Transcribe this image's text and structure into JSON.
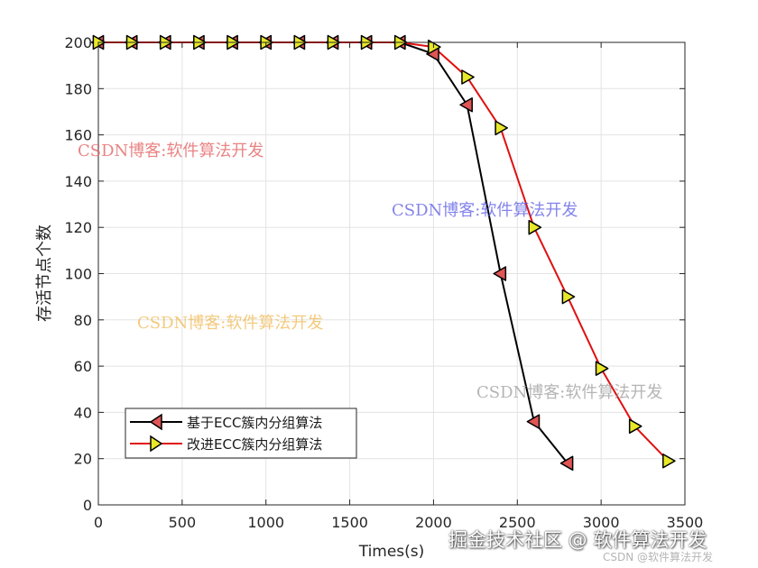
{
  "chart_data": {
    "type": "line",
    "xlabel": "Times(s)",
    "ylabel": "存活节点个数",
    "xlim": [
      0,
      3500
    ],
    "ylim": [
      0,
      200
    ],
    "xticks": [
      "0",
      "500",
      "1000",
      "1500",
      "2000",
      "2500",
      "3000",
      "3500"
    ],
    "yticks": [
      "0",
      "20",
      "40",
      "60",
      "80",
      "100",
      "120",
      "140",
      "160",
      "180",
      "200"
    ],
    "grid": true,
    "legend_position": "bottom-left",
    "series": [
      {
        "name": "基于ECC簇内分组算法",
        "line_color": "#000000",
        "marker": "left-triangle",
        "marker_fill": "#e05555",
        "x": [
          0,
          200,
          400,
          600,
          800,
          1000,
          1200,
          1400,
          1600,
          1800,
          2000,
          2200,
          2400,
          2600,
          2800
        ],
        "y": [
          200,
          200,
          200,
          200,
          200,
          200,
          200,
          200,
          200,
          200,
          195,
          173,
          100,
          36,
          18
        ]
      },
      {
        "name": "改进ECC簇内分组算法",
        "line_color": "#e01010",
        "marker": "right-triangle",
        "marker_fill": "#e8e82a",
        "x": [
          0,
          200,
          400,
          600,
          800,
          1000,
          1200,
          1400,
          1600,
          1800,
          2000,
          2200,
          2400,
          2600,
          2800,
          3000,
          3200,
          3400
        ],
        "y": [
          200,
          200,
          200,
          200,
          200,
          200,
          200,
          200,
          200,
          200,
          198,
          185,
          163,
          120,
          90,
          59,
          34,
          19
        ]
      }
    ]
  },
  "watermarks": [
    "CSDN博客:软件算法开发",
    "CSDN博客:软件算法开发",
    "CSDN博客:软件算法开发",
    "CSDN博客:软件算法开发"
  ],
  "credits": {
    "line1": "掘金技术社区 @ 软件算法开发",
    "line2": "CSDN @软件算法开发"
  }
}
